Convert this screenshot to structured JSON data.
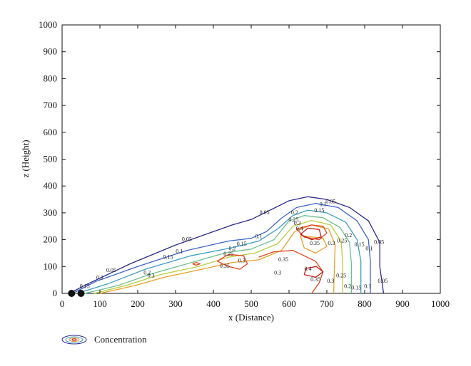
{
  "chart_data": {
    "type": "contour",
    "xlabel": "x (Distance)",
    "ylabel": "z (Height)",
    "xlim": [
      0,
      1000
    ],
    "ylim": [
      0,
      1000
    ],
    "xticks": [
      0,
      100,
      200,
      300,
      400,
      500,
      600,
      700,
      800,
      900,
      1000
    ],
    "yticks": [
      0,
      100,
      200,
      300,
      400,
      500,
      600,
      700,
      800,
      900,
      1000
    ],
    "grid": false,
    "legend": {
      "label": "Concentration",
      "position": "bottom-left"
    },
    "sources": [
      {
        "x": 25,
        "z": 0
      },
      {
        "x": 50,
        "z": 0
      }
    ],
    "levels": [
      {
        "level": 0.05,
        "color": "#2b2a8c",
        "paths": [
          [
            [
              20,
              0
            ],
            [
              60,
              30
            ],
            [
              180,
              110
            ],
            [
              300,
              180
            ],
            [
              400,
              230
            ],
            [
              450,
              255
            ],
            [
              500,
              275
            ],
            [
              550,
              310
            ],
            [
              600,
              345
            ],
            [
              650,
              360
            ],
            [
              700,
              350
            ],
            [
              760,
              320
            ],
            [
              810,
              270
            ],
            [
              840,
              190
            ],
            [
              840,
              100
            ],
            [
              850,
              0
            ]
          ]
        ],
        "labels": [
          {
            "x": 130,
            "z": 80,
            "text": "0.05"
          },
          {
            "x": 330,
            "z": 195,
            "text": "0.05"
          },
          {
            "x": 535,
            "z": 295,
            "text": "0.05"
          },
          {
            "x": 710,
            "z": 335,
            "text": "0.05"
          },
          {
            "x": 838,
            "z": 185,
            "text": "0.05"
          },
          {
            "x": 848,
            "z": 40,
            "text": "0.05"
          }
        ]
      },
      {
        "level": 0.1,
        "color": "#3f65c8",
        "paths": [
          [
            [
              28,
              0
            ],
            [
              90,
              45
            ],
            [
              200,
              100
            ],
            [
              330,
              160
            ],
            [
              440,
              195
            ],
            [
              500,
              205
            ],
            [
              540,
              230
            ],
            [
              580,
              280
            ],
            [
              620,
              320
            ],
            [
              670,
              335
            ],
            [
              730,
              320
            ],
            [
              780,
              270
            ],
            [
              810,
              200
            ],
            [
              815,
              120
            ],
            [
              815,
              0
            ]
          ]
        ],
        "labels": [
          {
            "x": 100,
            "z": 52,
            "text": "0.1"
          },
          {
            "x": 310,
            "z": 150,
            "text": "0.1"
          },
          {
            "x": 520,
            "z": 205,
            "text": "0.1"
          },
          {
            "x": 690,
            "z": 325,
            "text": "0.1"
          },
          {
            "x": 812,
            "z": 160,
            "text": "0.1"
          },
          {
            "x": 808,
            "z": 20,
            "text": "0.1"
          }
        ]
      },
      {
        "level": 0.15,
        "color": "#3e9ec6",
        "paths": [
          [
            [
              40,
              0
            ],
            [
              120,
              35
            ],
            [
              220,
              90
            ],
            [
              340,
              140
            ],
            [
              450,
              170
            ],
            [
              520,
              195
            ],
            [
              570,
              240
            ],
            [
              610,
              290
            ],
            [
              650,
              310
            ],
            [
              700,
              300
            ],
            [
              750,
              265
            ],
            [
              780,
              200
            ],
            [
              790,
              120
            ],
            [
              790,
              0
            ]
          ]
        ],
        "labels": [
          {
            "x": 60,
            "z": 20,
            "text": "0.15"
          },
          {
            "x": 280,
            "z": 128,
            "text": "0.15"
          },
          {
            "x": 475,
            "z": 178,
            "text": "0.15"
          },
          {
            "x": 680,
            "z": 303,
            "text": "0.15"
          },
          {
            "x": 786,
            "z": 175,
            "text": "0.15"
          },
          {
            "x": 778,
            "z": 15,
            "text": "0.15"
          }
        ]
      },
      {
        "level": 0.2,
        "color": "#6cc08f",
        "paths": [
          [
            [
              60,
              0
            ],
            [
              150,
              30
            ],
            [
              230,
              70
            ],
            [
              330,
              110
            ],
            [
              430,
              150
            ],
            [
              500,
              165
            ],
            [
              560,
              200
            ],
            [
              600,
              270
            ],
            [
              640,
              290
            ],
            [
              690,
              282
            ],
            [
              735,
              245
            ],
            [
              760,
              190
            ],
            [
              765,
              110
            ],
            [
              765,
              0
            ]
          ]
        ],
        "labels": [
          {
            "x": 225,
            "z": 70,
            "text": "0.2"
          },
          {
            "x": 450,
            "z": 160,
            "text": "0.2"
          },
          {
            "x": 615,
            "z": 295,
            "text": "0.2"
          },
          {
            "x": 757,
            "z": 210,
            "text": "0.2"
          },
          {
            "x": 755,
            "z": 20,
            "text": "0.2"
          }
        ]
      },
      {
        "level": 0.25,
        "color": "#b9cd3e",
        "paths": [
          [
            [
              85,
              0
            ],
            [
              170,
              30
            ],
            [
              260,
              70
            ],
            [
              360,
              100
            ],
            [
              440,
              135
            ],
            [
              510,
              150
            ],
            [
              570,
              185
            ],
            [
              610,
              250
            ],
            [
              660,
              272
            ],
            [
              710,
              255
            ],
            [
              738,
              195
            ],
            [
              742,
              110
            ],
            [
              742,
              0
            ]
          ]
        ],
        "labels": [
          {
            "x": 440,
            "z": 140,
            "text": "0.25"
          },
          {
            "x": 612,
            "z": 268,
            "text": "0.25"
          },
          {
            "x": 740,
            "z": 190,
            "text": "0.25"
          },
          {
            "x": 738,
            "z": 60,
            "text": "0.25"
          }
        ]
      },
      {
        "level": 0.3,
        "color": "#e9a128",
        "paths": [
          [
            [
              100,
              0
            ],
            [
              190,
              28
            ],
            [
              270,
              60
            ],
            [
              370,
              90
            ],
            [
              450,
              115
            ],
            [
              520,
              125
            ],
            [
              580,
              160
            ],
            [
              615,
              230
            ],
            [
              660,
              255
            ],
            [
              705,
              240
            ],
            [
              722,
              180
            ],
            [
              720,
              100
            ],
            [
              718,
              0
            ]
          ],
          [
            [
              630,
              215
            ],
            [
              690,
              205
            ],
            [
              700,
              175
            ],
            [
              670,
              150
            ],
            [
              640,
              170
            ],
            [
              630,
              215
            ]
          ]
        ],
        "labels": [
          {
            "x": 235,
            "z": 60,
            "text": "0.3"
          },
          {
            "x": 475,
            "z": 115,
            "text": "0.3"
          },
          {
            "x": 622,
            "z": 255,
            "text": "0.3"
          },
          {
            "x": 712,
            "z": 180,
            "text": "0.3"
          },
          {
            "x": 710,
            "z": 40,
            "text": "0.3"
          },
          {
            "x": 570,
            "z": 70,
            "text": "0.3"
          }
        ]
      },
      {
        "level": 0.35,
        "color": "#e4451e",
        "paths": [
          [
            [
              410,
              120
            ],
            [
              440,
              100
            ],
            [
              470,
              90
            ],
            [
              490,
              110
            ],
            [
              480,
              140
            ],
            [
              440,
              145
            ],
            [
              410,
              120
            ]
          ],
          [
            [
              520,
              135
            ],
            [
              560,
              155
            ],
            [
              610,
              160
            ],
            [
              640,
              140
            ],
            [
              670,
              120
            ],
            [
              690,
              80
            ],
            [
              680,
              40
            ],
            [
              660,
              0
            ]
          ],
          [
            [
              345,
              110
            ],
            [
              355,
              115
            ],
            [
              365,
              110
            ],
            [
              355,
              105
            ],
            [
              345,
              110
            ]
          ],
          [
            [
              620,
              240
            ],
            [
              640,
              210
            ],
            [
              680,
              200
            ],
            [
              700,
              225
            ],
            [
              690,
              250
            ],
            [
              660,
              255
            ],
            [
              620,
              240
            ]
          ]
        ],
        "labels": [
          {
            "x": 430,
            "z": 95,
            "text": "0.35"
          },
          {
            "x": 585,
            "z": 120,
            "text": "0.35"
          },
          {
            "x": 670,
            "z": 45,
            "text": "0.35"
          },
          {
            "x": 668,
            "z": 180,
            "text": "0.35"
          }
        ]
      },
      {
        "level": 0.4,
        "color": "#c8191a",
        "paths": [
          [
            [
              630,
              220
            ],
            [
              660,
              200
            ],
            [
              685,
              210
            ],
            [
              680,
              238
            ],
            [
              650,
              243
            ],
            [
              630,
              220
            ]
          ],
          [
            [
              640,
              70
            ],
            [
              670,
              60
            ],
            [
              690,
              80
            ],
            [
              672,
              100
            ],
            [
              645,
              93
            ],
            [
              640,
              70
            ]
          ]
        ],
        "labels": [
          {
            "x": 628,
            "z": 235,
            "text": "0.4"
          },
          {
            "x": 650,
            "z": 85,
            "text": "0.4"
          }
        ]
      }
    ]
  }
}
